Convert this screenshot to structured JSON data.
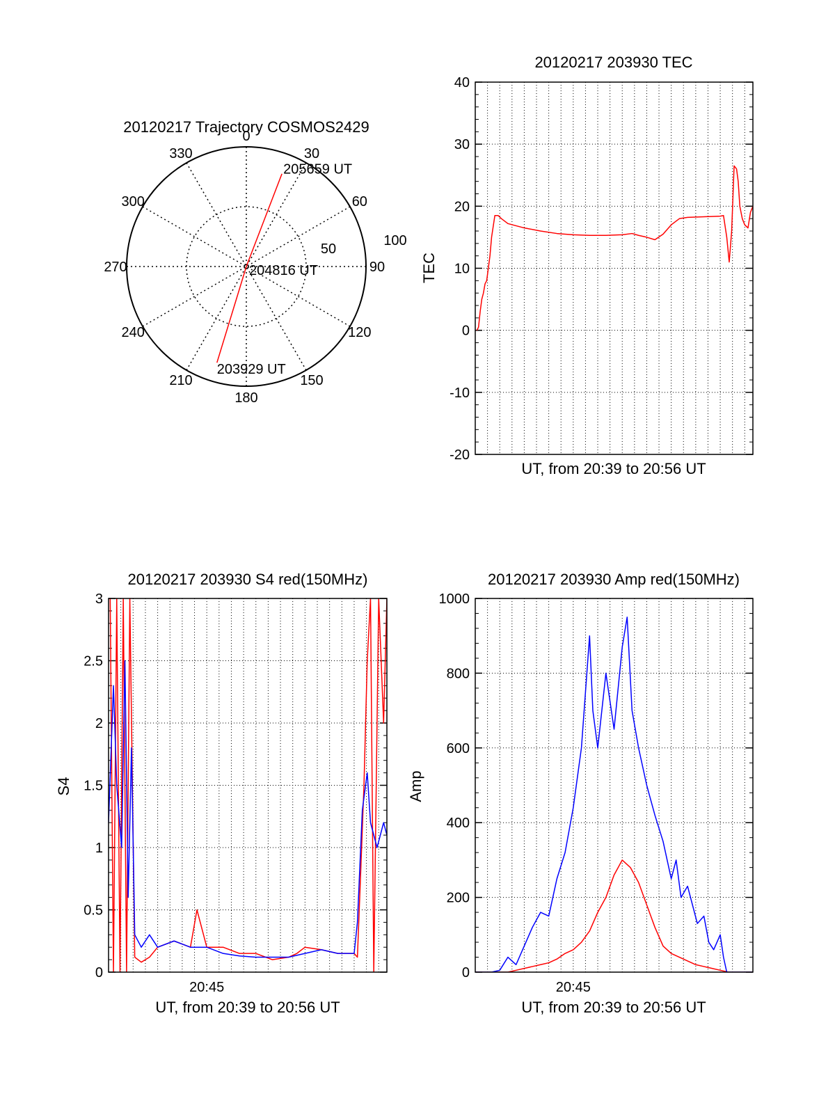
{
  "chart_data": [
    {
      "type": "polar",
      "title": "20120217 Trajectory COSMOS2429",
      "angle_labels": [
        "0",
        "30",
        "60",
        "90",
        "120",
        "150",
        "180",
        "210",
        "240",
        "270",
        "300",
        "330"
      ],
      "radius_labels": [
        "50",
        "100"
      ],
      "rmax": 100,
      "trajectory": {
        "color": "#ff0000",
        "points": [
          {
            "az": 197,
            "zen": 84,
            "label": "203929 UT"
          },
          {
            "az": 0,
            "zen": 0,
            "label": "204816 UT"
          },
          {
            "az": 21,
            "zen": 83,
            "label": "205659 UT"
          }
        ]
      }
    },
    {
      "type": "line",
      "title": "20120217 203930 TEC",
      "xlabel": "UT, from 20:39 to 20:56 UT",
      "ylabel": "TEC",
      "xlim": [
        0,
        17
      ],
      "ylim": [
        -20,
        40
      ],
      "yticks": [
        -20,
        -10,
        0,
        10,
        20,
        30,
        40
      ],
      "grid": true,
      "series": [
        {
          "color": "#ff0000",
          "x": [
            0.1,
            0.2,
            0.3,
            0.4,
            0.5,
            0.6,
            0.7,
            0.8,
            0.9,
            1.0,
            1.2,
            1.4,
            1.6,
            2,
            3,
            4,
            5,
            6,
            7,
            8,
            9,
            9.6,
            10,
            10.5,
            11,
            11.5,
            12,
            12.5,
            13,
            14,
            15,
            15.2,
            15.4,
            15.55,
            15.7,
            15.85,
            16.0,
            16.1,
            16.2,
            16.35,
            16.5,
            16.7,
            16.85,
            17
          ],
          "y": [
            0,
            0.5,
            3,
            5,
            6,
            7.5,
            8,
            10,
            12,
            15,
            18.5,
            18.5,
            18,
            17.2,
            16.5,
            16,
            15.6,
            15.4,
            15.3,
            15.3,
            15.4,
            15.6,
            15.3,
            15,
            14.6,
            15.5,
            17,
            18,
            18.2,
            18.3,
            18.4,
            18.5,
            15,
            11,
            16,
            26.5,
            26,
            24,
            20,
            18,
            17,
            16.5,
            19,
            20
          ]
        }
      ]
    },
    {
      "type": "line",
      "title": "20120217 203930 S4 red(150MHz)",
      "xlabel": "UT, from 20:39 to 20:56 UT",
      "ylabel": "S4",
      "xlim": [
        0,
        17
      ],
      "ylim": [
        0,
        3
      ],
      "yticks": [
        "0",
        "0.5",
        "1",
        "1.5",
        "2",
        "2.5",
        "3"
      ],
      "xticks": [
        {
          "value": 6,
          "label": "20:45"
        }
      ],
      "grid": true,
      "series": [
        {
          "color": "#ff0000",
          "x": [
            0.1,
            0.3,
            0.5,
            0.7,
            0.9,
            1.1,
            1.3,
            1.6,
            2.0,
            2.5,
            3,
            4,
            5,
            5.4,
            6,
            7,
            8,
            9,
            10,
            11,
            11.5,
            12,
            13,
            14,
            15,
            15.2,
            15.4,
            15.6,
            15.8,
            16,
            16.2,
            16.5,
            16.8,
            17
          ],
          "y": [
            3,
            0,
            3,
            0,
            3,
            0,
            3,
            0.12,
            0.08,
            0.12,
            0.2,
            0.25,
            0.2,
            0.5,
            0.2,
            0.2,
            0.15,
            0.15,
            0.1,
            0.12,
            0.15,
            0.2,
            0.18,
            0.15,
            0.15,
            0.12,
            0.8,
            1.5,
            2.5,
            3,
            0,
            3,
            2,
            3
          ]
        },
        {
          "color": "#0000ff",
          "x": [
            0,
            0.3,
            0.5,
            0.8,
            1.0,
            1.2,
            1.4,
            1.6,
            2.0,
            2.5,
            3,
            4,
            5,
            6,
            7,
            8,
            9,
            10,
            11,
            12,
            13,
            14,
            15,
            15.2,
            15.5,
            15.8,
            16,
            16.4,
            16.8,
            17
          ],
          "y": [
            1.2,
            2.3,
            1.5,
            1.0,
            2.5,
            0.6,
            1.8,
            0.3,
            0.2,
            0.3,
            0.2,
            0.25,
            0.2,
            0.2,
            0.15,
            0.13,
            0.12,
            0.12,
            0.12,
            0.15,
            0.18,
            0.15,
            0.15,
            0.4,
            1.3,
            1.6,
            1.2,
            1.0,
            1.2,
            1.1
          ]
        }
      ]
    },
    {
      "type": "line",
      "title": "20120217 203930 Amp red(150MHz)",
      "xlabel": "UT, from 20:39 to 20:56 UT",
      "ylabel": "Amp",
      "xlim": [
        0,
        17
      ],
      "ylim": [
        0,
        1000
      ],
      "yticks": [
        "0",
        "200",
        "400",
        "600",
        "800",
        "1000"
      ],
      "xticks": [
        {
          "value": 6,
          "label": "20:45"
        }
      ],
      "grid": true,
      "series": [
        {
          "color": "#ff0000",
          "x": [
            0,
            2,
            2.5,
            3,
            3.5,
            4,
            4.5,
            5,
            5.5,
            6,
            6.5,
            7,
            7.5,
            8,
            8.5,
            9,
            9.5,
            10,
            10.5,
            11,
            11.5,
            12,
            12.5,
            13,
            13.5,
            14,
            14.5,
            15,
            15.5,
            17
          ],
          "y": [
            0,
            0,
            5,
            10,
            15,
            20,
            25,
            35,
            50,
            60,
            80,
            110,
            160,
            200,
            260,
            300,
            280,
            240,
            180,
            120,
            70,
            50,
            40,
            30,
            20,
            15,
            10,
            5,
            0,
            0
          ]
        },
        {
          "color": "#0000ff",
          "x": [
            0,
            1,
            1.5,
            2,
            2.5,
            3,
            3.5,
            4,
            4.5,
            5,
            5.5,
            6,
            6.5,
            7,
            7.2,
            7.5,
            8,
            8.5,
            9,
            9.3,
            9.6,
            10,
            10.5,
            11,
            11.5,
            12,
            12.3,
            12.6,
            13,
            13.3,
            13.6,
            14,
            14.3,
            14.6,
            15,
            15.2,
            15.4,
            16,
            17
          ],
          "y": [
            0,
            0,
            5,
            40,
            20,
            70,
            120,
            160,
            150,
            250,
            320,
            440,
            600,
            900,
            700,
            600,
            800,
            650,
            870,
            950,
            700,
            600,
            500,
            420,
            350,
            250,
            300,
            200,
            230,
            180,
            130,
            150,
            80,
            60,
            100,
            40,
            0,
            0,
            0
          ]
        }
      ]
    }
  ]
}
